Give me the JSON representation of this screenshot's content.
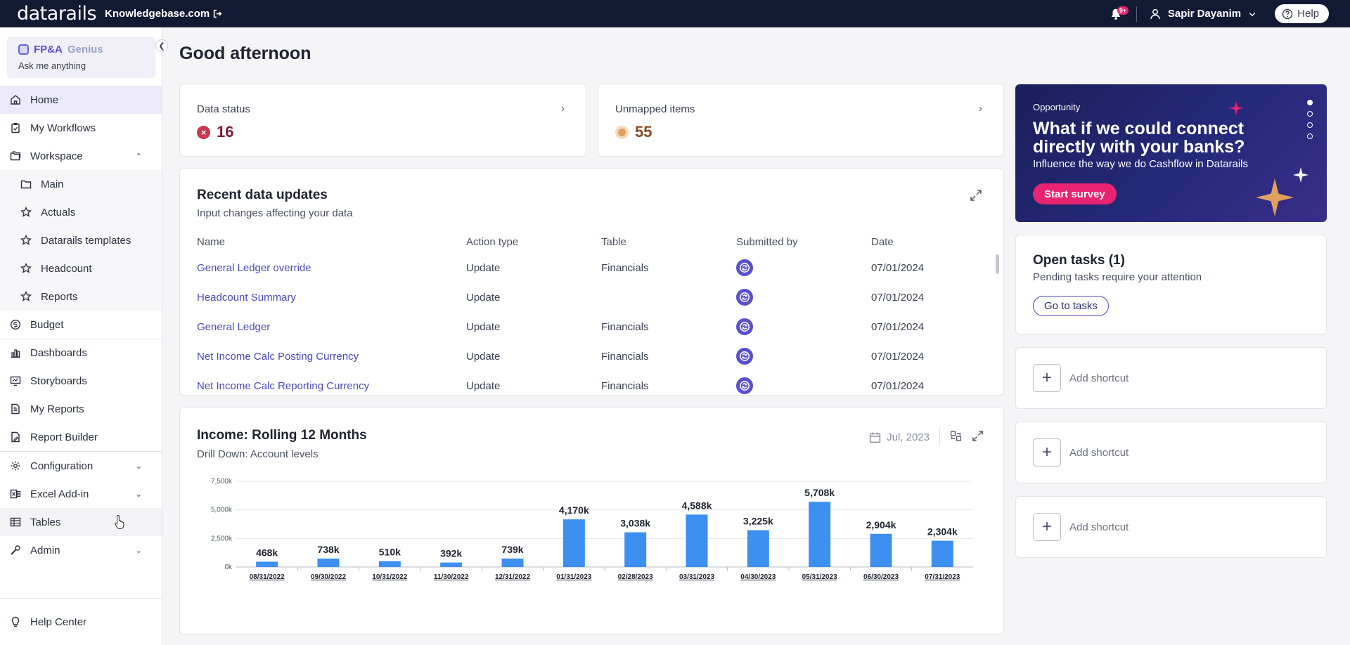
{
  "topbar": {
    "logo": "datarails",
    "org": "Knowledgebase.com",
    "notifications_badge": "9+",
    "user_name": "Sapir Dayanim",
    "help_label": "Help"
  },
  "sidebar": {
    "genius_title_a": "FP&A",
    "genius_title_b": "Genius",
    "genius_sub": "Ask me anything",
    "items": [
      {
        "label": "Home"
      },
      {
        "label": "My Workflows"
      },
      {
        "label": "Workspace"
      },
      {
        "label": "Main"
      },
      {
        "label": "Actuals"
      },
      {
        "label": "Datarails templates"
      },
      {
        "label": "Headcount"
      },
      {
        "label": "Reports"
      },
      {
        "label": "Budget"
      },
      {
        "label": "Dashboards"
      },
      {
        "label": "Storyboards"
      },
      {
        "label": "My Reports"
      },
      {
        "label": "Report Builder"
      },
      {
        "label": "Configuration"
      },
      {
        "label": "Excel Add-in"
      },
      {
        "label": "Tables"
      },
      {
        "label": "Admin"
      },
      {
        "label": "Help Center"
      }
    ]
  },
  "main": {
    "greeting": "Good afternoon",
    "data_status": {
      "label": "Data status",
      "value": "16"
    },
    "unmapped": {
      "label": "Unmapped items",
      "value": "55"
    },
    "updates": {
      "title": "Recent data updates",
      "subtitle": "Input changes affecting your data",
      "columns": [
        "Name",
        "Action type",
        "Table",
        "Submitted by",
        "Date"
      ],
      "rows": [
        {
          "name": "General Ledger override",
          "action": "Update",
          "table": "Financials",
          "date": "07/01/2024"
        },
        {
          "name": "Headcount Summary",
          "action": "Update",
          "table": "",
          "date": "07/01/2024"
        },
        {
          "name": "General Ledger",
          "action": "Update",
          "table": "Financials",
          "date": "07/01/2024"
        },
        {
          "name": "Net Income Calc Posting Currency",
          "action": "Update",
          "table": "Financials",
          "date": "07/01/2024"
        },
        {
          "name": "Net Income Calc Reporting Currency",
          "action": "Update",
          "table": "Financials",
          "date": "07/01/2024"
        }
      ]
    },
    "income": {
      "title": "Income: Rolling 12 Months",
      "subtitle": "Drill Down: Account levels",
      "date_filter": "Jul, 2023"
    }
  },
  "chart_data": {
    "type": "bar",
    "categories": [
      "08/31/2022",
      "09/30/2022",
      "10/31/2022",
      "11/30/2022",
      "12/31/2022",
      "01/31/2023",
      "02/28/2023",
      "03/31/2023",
      "04/30/2023",
      "05/31/2023",
      "06/30/2023",
      "07/31/2023"
    ],
    "values": [
      468,
      738,
      510,
      392,
      739,
      4170,
      3038,
      4588,
      3225,
      5708,
      2904,
      2304
    ],
    "data_labels": [
      "468k",
      "738k",
      "510k",
      "392k",
      "739k",
      "4,170k",
      "3,038k",
      "4,588k",
      "3,225k",
      "5,708k",
      "2,904k",
      "2,304k"
    ],
    "y_ticks": [
      0,
      2500,
      5000,
      7500
    ],
    "y_tick_labels": [
      "0k",
      "2,500k",
      "5,000k",
      "7,500k"
    ],
    "ylim": [
      0,
      7500
    ],
    "bar_color": "#3d8ff0",
    "grid": true
  },
  "right": {
    "promo": {
      "eyebrow": "Opportunity",
      "headline": "What if we could connect directly with your banks?",
      "subtitle": "Influence the way we do Cashflow in Datarails",
      "button": "Start survey"
    },
    "tasks": {
      "title": "Open tasks (1)",
      "subtitle": "Pending tasks require your attention",
      "button": "Go to tasks"
    },
    "shortcuts": [
      "Add shortcut",
      "Add shortcut",
      "Add shortcut"
    ]
  },
  "colors": {
    "topbar": "#121a33",
    "accent": "#4b48b8",
    "pink": "#e8236f",
    "active_nav": "#ece9fb"
  }
}
